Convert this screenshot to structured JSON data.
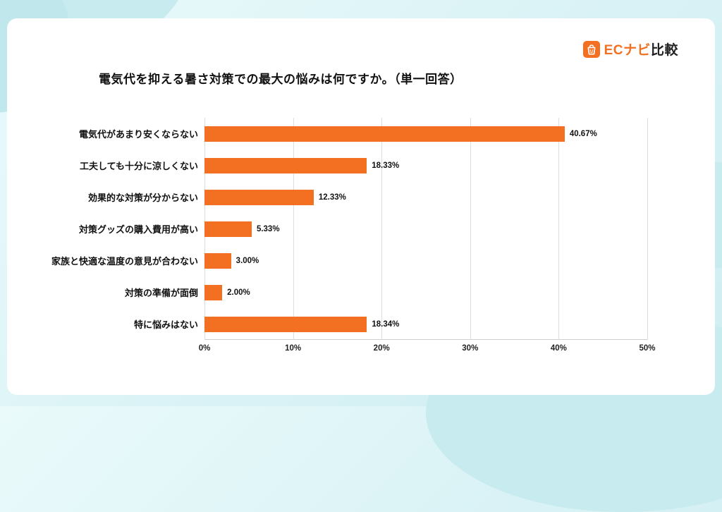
{
  "logo": {
    "brand": "ECナビ",
    "suffix": "比較",
    "icon": "shopping-bag-icon",
    "brand_color": "#f36f21"
  },
  "title": "電気代を抑える暑さ対策での最大の悩みは何ですか。（単一回答）",
  "chart_data": {
    "type": "bar",
    "orientation": "horizontal",
    "title": "電気代を抑える暑さ対策での最大の悩みは何ですか。（単一回答）",
    "categories": [
      "電気代があまり安くならない",
      "工夫しても十分に涼しくない",
      "効果的な対策が分からない",
      "対策グッズの購入費用が高い",
      "家族と快適な温度の意見が合わない",
      "対策の準備が面倒",
      "特に悩みはない"
    ],
    "values": [
      40.67,
      18.33,
      12.33,
      5.33,
      3.0,
      2.0,
      18.34
    ],
    "value_labels": [
      "40.67%",
      "18.33%",
      "12.33%",
      "5.33%",
      "3.00%",
      "2.00%",
      "18.34%"
    ],
    "xlabel": "",
    "ylabel": "",
    "xlim": [
      0,
      50
    ],
    "x_ticks": [
      "0%",
      "10%",
      "20%",
      "30%",
      "40%",
      "50%"
    ],
    "bar_color": "#f36f21",
    "grid": true,
    "legend": false
  }
}
